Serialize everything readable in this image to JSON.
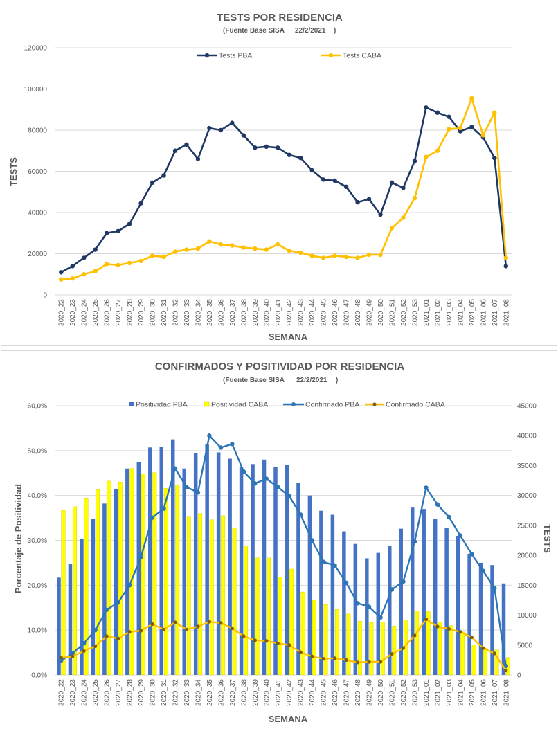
{
  "charts": {
    "tests": {
      "title": "TESTS POR RESIDENCIA",
      "subtitle_prefix": "(Fuente Base SISA",
      "subtitle_date": "22/2/2021",
      "subtitle_suffix": ")",
      "ylabel": "TESTS",
      "xlabel": "SEMANA"
    },
    "positividad": {
      "title": "CONFIRMADOS Y POSITIVIDAD POR RESIDENCIA",
      "subtitle_prefix": "(Fuente Base SISA",
      "subtitle_date": "22/2/2021",
      "subtitle_suffix": ")",
      "ylabel_left": "Porcentaje de Positividad",
      "ylabel_right": "TESTS",
      "xlabel": "SEMANA"
    }
  },
  "colors": {
    "pba_line": "#1f3864",
    "caba_line": "#ffc000",
    "pba_bar": "#4472c4",
    "caba_bar": "#ffff00",
    "conf_pba": "#2e75b6",
    "conf_caba": "#ffc000",
    "conf_caba_marker": "#7f6000"
  },
  "chart_data": [
    {
      "type": "line",
      "title": "TESTS POR RESIDENCIA",
      "xlabel": "SEMANA",
      "ylabel": "TESTS",
      "ylim": [
        0,
        120000
      ],
      "yticks": [
        "0",
        "20000",
        "40000",
        "60000",
        "80000",
        "100000",
        "120000"
      ],
      "grid": true,
      "legend": "top",
      "x": [
        "2020_22",
        "2020_23",
        "2020_24",
        "2020_25",
        "2020_26",
        "2020_27",
        "2020_28",
        "2020_29",
        "2020_30",
        "2020_31",
        "2020_32",
        "2020_33",
        "2020_34",
        "2020_35",
        "2020_36",
        "2020_37",
        "2020_38",
        "2020_39",
        "2020_40",
        "2020_41",
        "2020_42",
        "2020_43",
        "2020_44",
        "2020_45",
        "2020_46",
        "2020_47",
        "2020_48",
        "2020_49",
        "2020_50",
        "2020_51",
        "2020_52",
        "2020_53",
        "2021_01",
        "2021_02",
        "2021_03",
        "2021_04",
        "2021_05",
        "2021_06",
        "2021_07",
        "2021_08"
      ],
      "series": [
        {
          "name": "Tests PBA",
          "values": [
            11000,
            14000,
            18000,
            22000,
            30000,
            31000,
            34500,
            44500,
            54500,
            58000,
            70000,
            73000,
            66000,
            81000,
            80000,
            83500,
            77500,
            71500,
            72000,
            71500,
            68000,
            66500,
            60500,
            56000,
            55500,
            52500,
            45000,
            46500,
            39000,
            54500,
            52000,
            65000,
            91000,
            88500,
            86500,
            79500,
            81500,
            76500,
            66500,
            14000
          ]
        },
        {
          "name": "Tests CABA",
          "values": [
            7500,
            8000,
            10000,
            11500,
            15000,
            14500,
            15500,
            16500,
            19000,
            18500,
            21000,
            22000,
            22500,
            26000,
            24500,
            24000,
            23000,
            22500,
            22000,
            24500,
            21500,
            20500,
            19000,
            18000,
            19000,
            18500,
            18000,
            19500,
            19500,
            32500,
            37500,
            47000,
            67000,
            70000,
            80500,
            81000,
            95500,
            77500,
            88500,
            18000
          ]
        }
      ]
    },
    {
      "type": "bar",
      "title": "CONFIRMADOS Y POSITIVIDAD POR RESIDENCIA",
      "xlabel": "SEMANA",
      "ylabel": "Porcentaje de Positividad",
      "ylabel_right": "TESTS",
      "ylim": [
        0,
        60
      ],
      "ylim_right": [
        0,
        45000
      ],
      "yticks": [
        "0,0%",
        "10,0%",
        "20,0%",
        "30,0%",
        "40,0%",
        "50,0%",
        "60,0%"
      ],
      "yticks_right": [
        "0",
        "5000",
        "10000",
        "15000",
        "20000",
        "25000",
        "30000",
        "35000",
        "40000",
        "45000"
      ],
      "grid": true,
      "legend": "top",
      "x": [
        "2020_22",
        "2020_23",
        "2020_24",
        "2020_25",
        "2020_26",
        "2020_27",
        "2020_28",
        "2020_29",
        "2020_30",
        "2020_31",
        "2020_32",
        "2020_33",
        "2020_34",
        "2020_35",
        "2020_36",
        "2020_37",
        "2020_38",
        "2020_39",
        "2020_40",
        "2020_41",
        "2020_42",
        "2020_43",
        "2020_44",
        "2020_45",
        "2020_46",
        "2020_47",
        "2020_48",
        "2020_49",
        "2020_50",
        "2020_51",
        "2020_52",
        "2020_53",
        "2021_01",
        "2021_02",
        "2021_03",
        "2021_04",
        "2021_05",
        "2021_06",
        "2021_07",
        "2021_08"
      ],
      "series": [
        {
          "name": "Positividad PBA",
          "type": "bar",
          "axis": "left",
          "values": [
            21.7,
            24.8,
            30.4,
            34.7,
            38.2,
            41.5,
            46.0,
            47.4,
            50.7,
            50.9,
            52.5,
            46.0,
            49.4,
            51.5,
            49.6,
            48.2,
            46.3,
            47.0,
            48.0,
            46.3,
            46.8,
            42.8,
            40.0,
            36.6,
            35.7,
            32.0,
            29.2,
            26.0,
            27.2,
            28.8,
            32.6,
            37.3,
            37.0,
            34.7,
            32.8,
            31.0,
            27.0,
            25.0,
            24.5,
            20.4
          ]
        },
        {
          "name": "Positividad CABA",
          "type": "bar",
          "axis": "left",
          "values": [
            36.7,
            37.5,
            39.3,
            41.3,
            43.2,
            43.0,
            46.0,
            44.8,
            45.1,
            41.6,
            42.4,
            35.2,
            36.0,
            34.6,
            35.5,
            32.8,
            28.8,
            26.1,
            26.1,
            21.8,
            23.6,
            18.5,
            16.7,
            15.7,
            14.6,
            13.6,
            12.0,
            11.7,
            11.8,
            10.9,
            12.3,
            14.3,
            14.1,
            11.8,
            11.0,
            9.6,
            6.7,
            6.0,
            5.6,
            3.9
          ]
        },
        {
          "name": "Confirmado PBA",
          "type": "line",
          "axis": "right",
          "values": [
            2400,
            3600,
            5300,
            7500,
            10900,
            12100,
            15000,
            19700,
            26300,
            27800,
            34500,
            31400,
            30500,
            40000,
            38000,
            38600,
            34000,
            32000,
            32800,
            31400,
            29900,
            26800,
            22500,
            18900,
            18300,
            15400,
            12000,
            11400,
            9600,
            14300,
            15600,
            22300,
            31300,
            28500,
            26400,
            23300,
            20200,
            17400,
            14500,
            1500
          ]
        },
        {
          "name": "Confirmado CABA",
          "type": "line",
          "axis": "right",
          "values": [
            2900,
            3100,
            4000,
            4800,
            6500,
            6100,
            7200,
            7400,
            8500,
            7600,
            8800,
            7600,
            8100,
            8900,
            8700,
            7800,
            6500,
            5800,
            5700,
            5300,
            5000,
            3800,
            3100,
            2700,
            2800,
            2500,
            2100,
            2200,
            2200,
            3500,
            4500,
            6600,
            9300,
            8100,
            7700,
            7200,
            6300,
            4500,
            3600,
            750
          ]
        }
      ]
    }
  ]
}
